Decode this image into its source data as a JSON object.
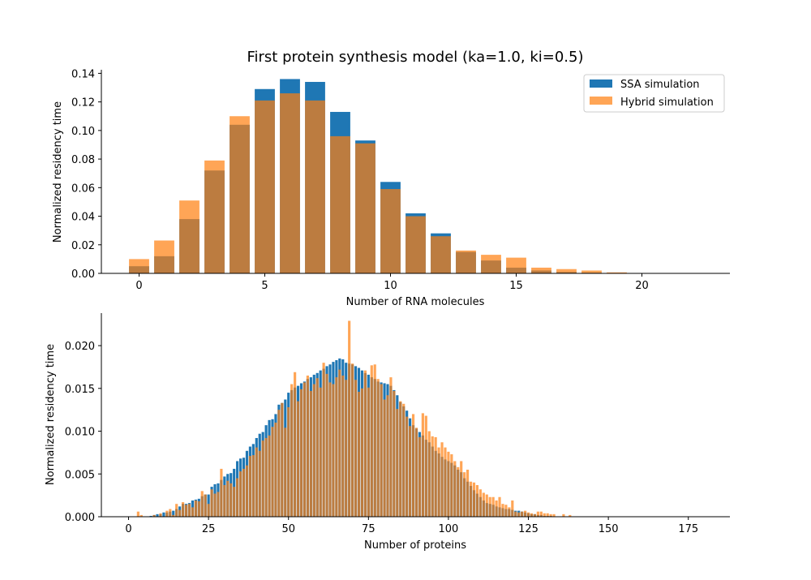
{
  "chart_data": [
    {
      "type": "bar",
      "title": "First protein synthesis model (ka=1.0, ki=0.5)",
      "xlabel": "Number of RNA molecules",
      "ylabel": "Normalized residency time",
      "xlim": [
        -1.5,
        23.5
      ],
      "ylim": [
        0,
        0.1425
      ],
      "xticks": [
        0,
        5,
        10,
        15,
        20
      ],
      "yticks": [
        0.0,
        0.02,
        0.04,
        0.06,
        0.08,
        0.1,
        0.12,
        0.14
      ],
      "ytick_labels": [
        "0.00",
        "0.02",
        "0.04",
        "0.06",
        "0.08",
        "0.10",
        "0.12",
        "0.14"
      ],
      "legend": {
        "position": "top-right"
      },
      "series": [
        {
          "name": "SSA simulation",
          "color": "#1f77b4",
          "x": [
            0,
            1,
            2,
            3,
            4,
            5,
            6,
            7,
            8,
            9,
            10,
            11,
            12,
            13,
            14,
            15,
            16,
            17,
            18,
            19
          ],
          "values": [
            0.005,
            0.012,
            0.038,
            0.072,
            0.104,
            0.129,
            0.136,
            0.134,
            0.113,
            0.093,
            0.064,
            0.042,
            0.028,
            0.015,
            0.009,
            0.004,
            0.002,
            0.001,
            0.0005,
            0.0002
          ]
        },
        {
          "name": "Hybrid simulation",
          "color": "#ff7f0e",
          "opacity": 0.7,
          "x": [
            0,
            1,
            2,
            3,
            4,
            5,
            6,
            7,
            8,
            9,
            10,
            11,
            12,
            13,
            14,
            15,
            16,
            17,
            18,
            19
          ],
          "values": [
            0.01,
            0.023,
            0.051,
            0.079,
            0.11,
            0.121,
            0.126,
            0.121,
            0.096,
            0.091,
            0.059,
            0.04,
            0.026,
            0.016,
            0.013,
            0.011,
            0.004,
            0.003,
            0.002,
            0.0007
          ]
        }
      ]
    },
    {
      "type": "bar",
      "xlabel": "Number of proteins",
      "ylabel": "Normalized residency time",
      "xlim": [
        -8.5,
        188
      ],
      "ylim": [
        0,
        0.0238
      ],
      "xticks": [
        0,
        25,
        50,
        75,
        100,
        125,
        150,
        175
      ],
      "yticks": [
        0.0,
        0.005,
        0.01,
        0.015,
        0.02
      ],
      "ytick_labels": [
        "0.000",
        "0.005",
        "0.010",
        "0.015",
        "0.020"
      ],
      "series": [
        {
          "name": "SSA simulation",
          "color": "#1f77b4",
          "x_start": 3,
          "values": [
            0.0,
            0.0,
            0.0,
            0.0,
            0.0001,
            0.0002,
            0.0003,
            0.0003,
            0.0005,
            0.0005,
            0.0006,
            0.0007,
            0.0009,
            0.0012,
            0.0015,
            0.0015,
            0.0016,
            0.0019,
            0.002,
            0.0021,
            0.0024,
            0.0026,
            0.0026,
            0.0035,
            0.0038,
            0.0039,
            0.0043,
            0.0047,
            0.005,
            0.0051,
            0.0056,
            0.0065,
            0.0068,
            0.0069,
            0.0077,
            0.0082,
            0.0085,
            0.0092,
            0.0097,
            0.0099,
            0.0107,
            0.0113,
            0.0114,
            0.012,
            0.0131,
            0.0133,
            0.0137,
            0.0145,
            0.0148,
            0.0151,
            0.0153,
            0.0156,
            0.0158,
            0.0161,
            0.0163,
            0.0166,
            0.0168,
            0.0171,
            0.0173,
            0.0176,
            0.0178,
            0.0181,
            0.0183,
            0.0185,
            0.0184,
            0.018,
            0.0179,
            0.0178,
            0.0176,
            0.0174,
            0.0171,
            0.0168,
            0.0166,
            0.0163,
            0.0161,
            0.0158,
            0.0157,
            0.0156,
            0.0155,
            0.0153,
            0.0148,
            0.0142,
            0.0134,
            0.0129,
            0.0124,
            0.0115,
            0.0107,
            0.0103,
            0.0099,
            0.0095,
            0.009,
            0.0087,
            0.0082,
            0.0077,
            0.0074,
            0.007,
            0.0067,
            0.0065,
            0.0063,
            0.006,
            0.0055,
            0.0052,
            0.0045,
            0.0041,
            0.0036,
            0.0031,
            0.0027,
            0.0023,
            0.0019,
            0.0016,
            0.0015,
            0.0014,
            0.0012,
            0.0011,
            0.001,
            0.0009,
            0.0009,
            0.0008,
            0.0007,
            0.0007,
            0.0006,
            0.0005,
            0.0004,
            0.0003,
            0.0003,
            0.0002,
            0.0002,
            0.0001,
            0.0001,
            0.0001
          ]
        },
        {
          "name": "Hybrid simulation",
          "color": "#ff7f0e",
          "opacity": 0.7,
          "x_start": 3,
          "values": [
            0.0006,
            0.0002,
            0.0,
            0.0,
            0.0,
            0.0002,
            0.0,
            0.0004,
            0.0,
            0.0007,
            0.0009,
            0.0002,
            0.0015,
            0.0008,
            0.0017,
            0.0014,
            0.0015,
            0.0011,
            0.0019,
            0.0018,
            0.003,
            0.0026,
            0.0015,
            0.0032,
            0.0027,
            0.0029,
            0.0056,
            0.0037,
            0.0042,
            0.0039,
            0.0035,
            0.0045,
            0.0053,
            0.0056,
            0.006,
            0.0071,
            0.0072,
            0.0081,
            0.0077,
            0.0089,
            0.0092,
            0.0095,
            0.0105,
            0.011,
            0.0125,
            0.0133,
            0.0104,
            0.0128,
            0.0155,
            0.0169,
            0.0135,
            0.0149,
            0.0157,
            0.0165,
            0.0147,
            0.0155,
            0.0162,
            0.0151,
            0.018,
            0.0167,
            0.0157,
            0.0155,
            0.0163,
            0.0172,
            0.0165,
            0.016,
            0.0229,
            0.0179,
            0.016,
            0.0146,
            0.015,
            0.0171,
            0.0151,
            0.0177,
            0.0178,
            0.0161,
            0.0155,
            0.0137,
            0.0142,
            0.0163,
            0.0147,
            0.0126,
            0.0135,
            0.0132,
            0.0117,
            0.0106,
            0.012,
            0.0104,
            0.0093,
            0.0121,
            0.0118,
            0.01,
            0.0094,
            0.0093,
            0.0081,
            0.0087,
            0.0081,
            0.0076,
            0.0073,
            0.0065,
            0.0058,
            0.0065,
            0.0052,
            0.0055,
            0.0041,
            0.004,
            0.0037,
            0.0032,
            0.0028,
            0.0026,
            0.0023,
            0.0023,
            0.0019,
            0.0023,
            0.0015,
            0.0014,
            0.0011,
            0.0019,
            0.0006,
            0.0005,
            0.0006,
            0.0007,
            0.0005,
            0.0004,
            0.0003,
            0.0006,
            0.0006,
            0.0004,
            0.0004,
            0.0003,
            0.0003,
            0.0,
            0.0,
            0.0003,
            0.0,
            0.0002
          ]
        }
      ]
    }
  ]
}
